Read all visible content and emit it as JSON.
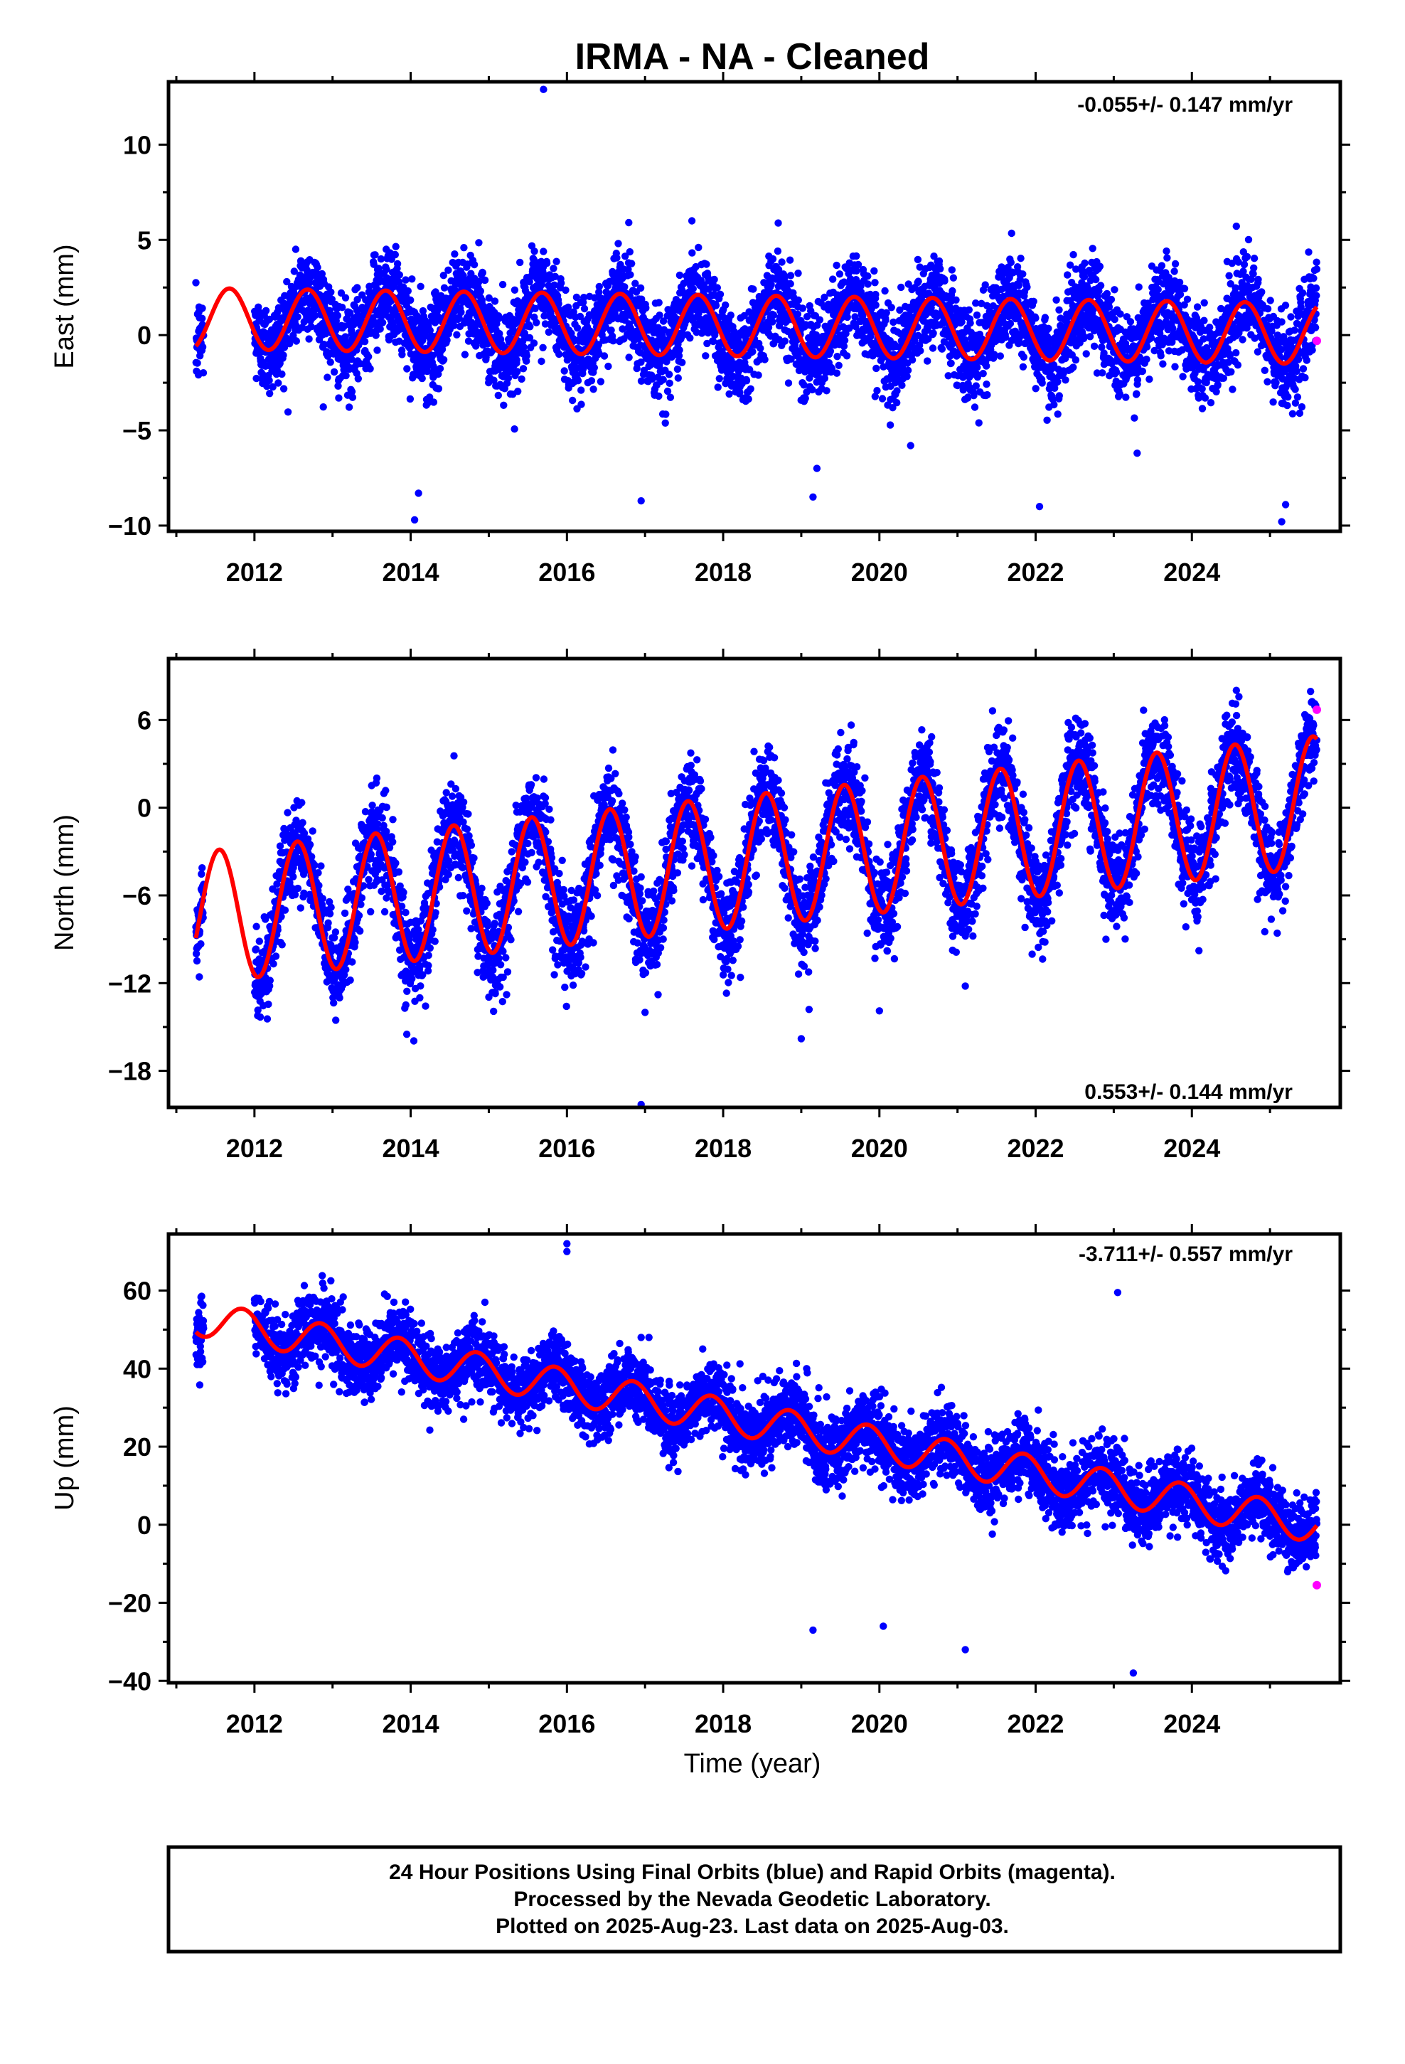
{
  "title": "IRMA  - NA - Cleaned",
  "xlabel": "Time (year)",
  "footer": {
    "line1": "24 Hour Positions Using Final Orbits (blue) and Rapid Orbits (magenta).",
    "line2": "Processed by the Nevada Geodetic Laboratory.",
    "line3": "Plotted on 2025-Aug-23. Last data on 2025-Aug-03."
  },
  "colors": {
    "final_orbits": "#0000ff",
    "rapid_orbits": "#ff00ff",
    "model_fit": "#ff0000"
  },
  "chart_data": [
    {
      "type": "scatter",
      "panel": "east",
      "ylabel": "East (mm)",
      "rate": "-0.055+/- 0.147 mm/yr",
      "rate_position": "top-right",
      "xlim": [
        2010.9,
        2025.9
      ],
      "ylim": [
        -10.3,
        13.3
      ],
      "x_ticks": [
        2012,
        2014,
        2016,
        2018,
        2020,
        2022,
        2024
      ],
      "y_ticks": [
        -10,
        -5,
        0,
        5,
        10
      ],
      "data_start": 2011.25,
      "data_gap": [
        2011.35,
        2012.0
      ],
      "data_end": 2025.6,
      "fit": {
        "offset": 0.5,
        "trend_mm_per_yr": -0.055,
        "annual_amplitude": 1.6,
        "annual_peak_phase": 0.68,
        "semiannual_amplitude": 0.0,
        "semiannual_phase": 0.0
      },
      "scatter_sd": 1.2,
      "series": [
        {
          "name": "Final Orbits (blue)",
          "color": "#0000ff"
        },
        {
          "name": "Rapid Orbits (magenta)",
          "color": "#ff00ff",
          "points": [
            {
              "x": 2025.6,
              "y": -0.3
            }
          ]
        },
        {
          "name": "Model fit",
          "color": "#ff0000"
        }
      ],
      "outliers": [
        {
          "x": 2015.7,
          "y": 12.9
        },
        {
          "x": 2014.05,
          "y": -9.7
        },
        {
          "x": 2014.1,
          "y": -8.3
        },
        {
          "x": 2016.95,
          "y": -8.7
        },
        {
          "x": 2019.15,
          "y": -8.5
        },
        {
          "x": 2019.2,
          "y": -7.0
        },
        {
          "x": 2022.05,
          "y": -9.0
        },
        {
          "x": 2025.15,
          "y": -9.8
        },
        {
          "x": 2025.2,
          "y": -8.9
        },
        {
          "x": 2017.6,
          "y": 6.0
        },
        {
          "x": 2020.4,
          "y": -5.8
        },
        {
          "x": 2023.3,
          "y": -6.2
        }
      ]
    },
    {
      "type": "scatter",
      "panel": "north",
      "ylabel": "North (mm)",
      "rate": "0.553+/- 0.144 mm/yr",
      "rate_position": "bottom-right",
      "xlim": [
        2010.9,
        2025.9
      ],
      "ylim": [
        -20.5,
        10.2
      ],
      "x_ticks": [
        2012,
        2014,
        2016,
        2018,
        2020,
        2022,
        2024
      ],
      "y_ticks": [
        -18,
        -12,
        -6,
        0,
        6
      ],
      "data_start": 2011.25,
      "data_gap": [
        2011.35,
        2012.0
      ],
      "data_end": 2025.6,
      "fit": {
        "offset": -3.8,
        "trend_mm_per_yr": 0.553,
        "annual_amplitude": 4.5,
        "annual_peak_phase": 0.55,
        "semiannual_amplitude": 0.0,
        "semiannual_phase": 0.0
      },
      "scatter_sd": 1.6,
      "series": [
        {
          "name": "Final Orbits (blue)",
          "color": "#0000ff"
        },
        {
          "name": "Rapid Orbits (magenta)",
          "color": "#ff00ff",
          "points": [
            {
              "x": 2025.6,
              "y": 6.7
            }
          ]
        },
        {
          "name": "Model fit",
          "color": "#ff0000"
        }
      ],
      "outliers": [
        {
          "x": 2013.95,
          "y": -15.5
        },
        {
          "x": 2016.95,
          "y": -20.3
        },
        {
          "x": 2017.0,
          "y": -14.0
        },
        {
          "x": 2019.0,
          "y": -15.8
        },
        {
          "x": 2019.1,
          "y": -13.8
        },
        {
          "x": 2020.0,
          "y": -13.9
        },
        {
          "x": 2022.9,
          "y": -9.0
        },
        {
          "x": 2021.1,
          "y": -12.2
        },
        {
          "x": 2025.2,
          "y": -5.4
        }
      ]
    },
    {
      "type": "scatter",
      "panel": "up",
      "ylabel": "Up (mm)",
      "rate": "-3.711+/- 0.557 mm/yr",
      "rate_position": "top-right",
      "xlim": [
        2010.9,
        2025.9
      ],
      "ylim": [
        -40.5,
        74.5
      ],
      "x_ticks": [
        2012,
        2014,
        2016,
        2018,
        2020,
        2022,
        2024
      ],
      "y_ticks": [
        -40,
        -20,
        0,
        20,
        40,
        60
      ],
      "data_start": 2011.25,
      "data_gap": [
        2011.35,
        2012.0
      ],
      "data_end": 2025.6,
      "fit": {
        "offset": 28.0,
        "trend_mm_per_yr": -3.711,
        "annual_amplitude": 4.5,
        "annual_peak_phase": 0.85,
        "semiannual_amplitude": 0.0,
        "semiannual_phase": 0.0
      },
      "scatter_sd": 4.5,
      "series": [
        {
          "name": "Final Orbits (blue)",
          "color": "#0000ff"
        },
        {
          "name": "Rapid Orbits (magenta)",
          "color": "#ff00ff",
          "points": [
            {
              "x": 2025.6,
              "y": -15.5
            }
          ]
        },
        {
          "name": "Model fit",
          "color": "#ff0000"
        }
      ],
      "outliers": [
        {
          "x": 2016.0,
          "y": 72.0
        },
        {
          "x": 2016.0,
          "y": 70.0
        },
        {
          "x": 2023.05,
          "y": 59.5
        },
        {
          "x": 2014.25,
          "y": 49.0
        },
        {
          "x": 2014.95,
          "y": 57.0
        },
        {
          "x": 2012.8,
          "y": 55.0
        },
        {
          "x": 2016.95,
          "y": 48.0
        },
        {
          "x": 2017.05,
          "y": 48.0
        },
        {
          "x": 2023.25,
          "y": -38.0
        },
        {
          "x": 2021.1,
          "y": -32.0
        },
        {
          "x": 2019.15,
          "y": -27.0
        },
        {
          "x": 2020.05,
          "y": -26.0
        }
      ]
    }
  ]
}
